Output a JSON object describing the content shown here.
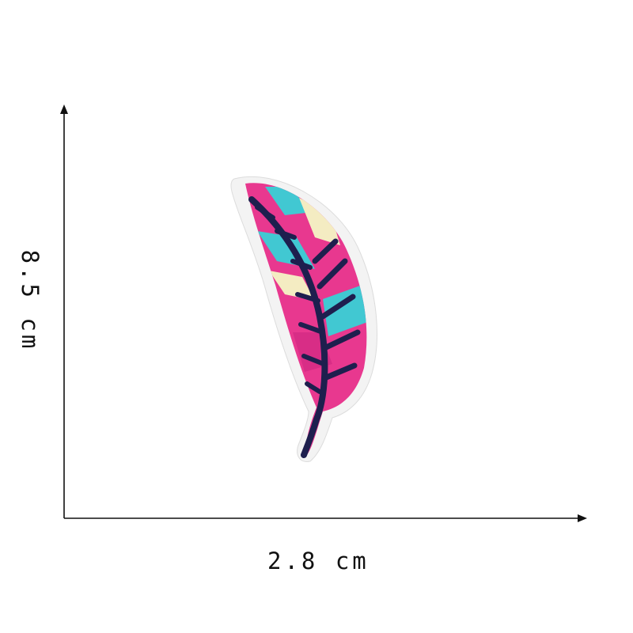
{
  "dimensions": {
    "width_label": "2.8 cm",
    "height_label": "8.5 cm"
  },
  "image": {
    "subject": "feather-patch",
    "colors": {
      "pink": "#e8388f",
      "cyan": "#41c8d2",
      "cream": "#f4ecc2",
      "navy": "#1e1f4e",
      "backing": "#f2f2f2",
      "axis": "#111111"
    }
  }
}
